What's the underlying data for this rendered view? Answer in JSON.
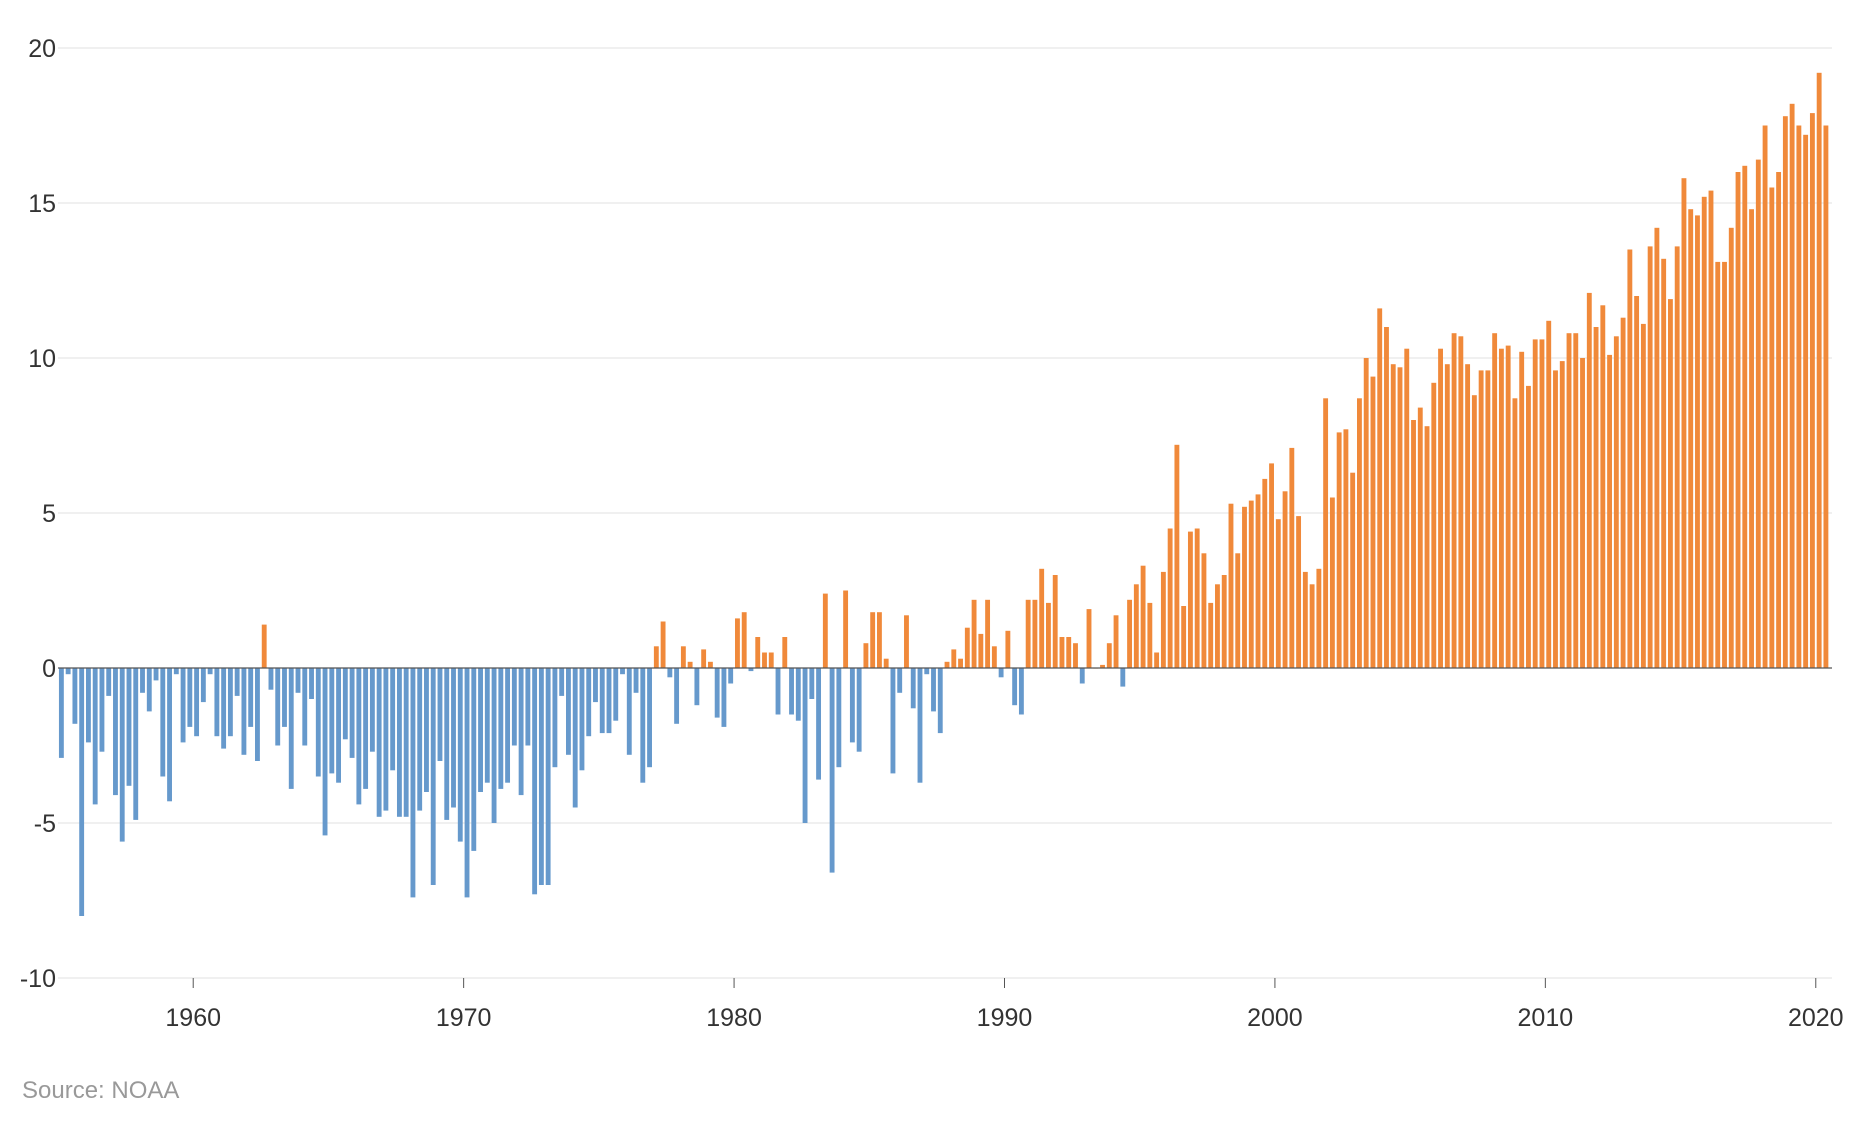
{
  "source_text": "Source: NOAA",
  "colors": {
    "positive": "#f0893a",
    "negative": "#6699cc",
    "grid": "#e2e2e2",
    "zero_line": "#555555",
    "text": "#333333",
    "source": "#999999"
  },
  "chart_data": {
    "type": "bar",
    "title": "",
    "xlabel": "",
    "ylabel": "",
    "ylim": [
      -10,
      20
    ],
    "xlim": [
      1955.0,
      2020.6
    ],
    "y_ticks": [
      "20",
      "15",
      "10",
      "5",
      "0",
      "-5",
      "-10"
    ],
    "x_ticks": [
      "1960",
      "1970",
      "1980",
      "1990",
      "2000",
      "2010",
      "2020"
    ],
    "grid": true,
    "bar_interval_years": 0.25,
    "first_bar_x": 1955.125,
    "values": [
      -2.9,
      -0.2,
      -1.8,
      -8.0,
      -2.4,
      -4.4,
      -2.7,
      -0.9,
      -4.1,
      -5.6,
      -3.8,
      -4.9,
      -0.8,
      -1.4,
      -0.4,
      -3.5,
      -4.3,
      -0.2,
      -2.4,
      -1.9,
      -2.2,
      -1.1,
      -0.2,
      -2.2,
      -2.6,
      -2.2,
      -0.9,
      -2.8,
      -1.9,
      -3.0,
      1.4,
      -0.7,
      -2.5,
      -1.9,
      -3.9,
      -0.8,
      -2.5,
      -1.0,
      -3.5,
      -5.4,
      -3.4,
      -3.7,
      -2.3,
      -2.9,
      -4.4,
      -3.9,
      -2.7,
      -4.8,
      -4.6,
      -3.3,
      -4.8,
      -4.8,
      -7.4,
      -4.6,
      -4.0,
      -7.0,
      -3.0,
      -4.9,
      -4.5,
      -5.6,
      -7.4,
      -5.9,
      -4.0,
      -3.7,
      -5.0,
      -3.9,
      -3.7,
      -2.5,
      -4.1,
      -2.5,
      -7.3,
      -7.0,
      -7.0,
      -3.2,
      -0.9,
      -2.8,
      -4.5,
      -3.3,
      -2.2,
      -1.1,
      -2.1,
      -2.1,
      -1.7,
      -0.2,
      -2.8,
      -0.8,
      -3.7,
      -3.2,
      0.7,
      1.5,
      -0.3,
      -1.8,
      0.7,
      0.2,
      -1.2,
      0.6,
      0.2,
      -1.6,
      -1.9,
      -0.5,
      1.6,
      1.8,
      -0.1,
      1.0,
      0.5,
      0.5,
      -1.5,
      1.0,
      -1.5,
      -1.7,
      -5.0,
      -1.0,
      -3.6,
      2.4,
      -6.6,
      -3.2,
      2.5,
      -2.4,
      -2.7,
      0.8,
      1.8,
      1.8,
      0.3,
      -3.4,
      -0.8,
      1.7,
      -1.3,
      -3.7,
      -0.2,
      -1.4,
      -2.1,
      0.2,
      0.6,
      0.3,
      1.3,
      2.2,
      1.1,
      2.2,
      0.7,
      -0.3,
      1.2,
      -1.2,
      -1.5,
      2.2,
      2.2,
      3.2,
      2.1,
      3.0,
      1.0,
      1.0,
      0.8,
      -0.5,
      1.9,
      0.0,
      0.1,
      0.8,
      1.7,
      -0.6,
      2.2,
      2.7,
      3.3,
      2.1,
      0.5,
      3.1,
      4.5,
      7.2,
      2.0,
      4.4,
      4.5,
      3.7,
      2.1,
      2.7,
      3.0,
      5.3,
      3.7,
      5.2,
      5.4,
      5.6,
      6.1,
      6.6,
      4.8,
      5.7,
      7.1,
      4.9,
      3.1,
      2.7,
      3.2,
      8.7,
      5.5,
      7.6,
      7.7,
      6.3,
      8.7,
      10.0,
      9.4,
      11.6,
      11.0,
      9.8,
      9.7,
      10.3,
      8.0,
      8.4,
      7.8,
      9.2,
      10.3,
      9.8,
      10.8,
      10.7,
      9.8,
      8.8,
      9.6,
      9.6,
      10.8,
      10.3,
      10.4,
      8.7,
      10.2,
      9.1,
      10.6,
      10.6,
      11.2,
      9.6,
      9.9,
      10.8,
      10.8,
      10.0,
      12.1,
      11.0,
      11.7,
      10.1,
      10.7,
      11.3,
      13.5,
      12.0,
      11.1,
      13.6,
      14.2,
      13.2,
      11.9,
      13.6,
      15.8,
      14.8,
      14.6,
      15.2,
      15.4,
      13.1,
      13.1,
      14.2,
      16.0,
      16.2,
      14.8,
      16.4,
      17.5,
      15.5,
      16.0,
      17.8,
      18.2,
      17.5,
      17.2,
      17.9,
      19.2,
      17.5
    ]
  }
}
